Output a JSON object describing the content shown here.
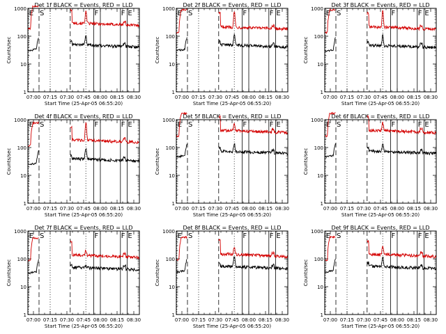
{
  "figure": {
    "axis_color": "#000000",
    "events_color": "#000000",
    "lld_color": "#d40000"
  },
  "chart_data": [
    {
      "type": "line",
      "title": "Det 1f BLACK = Events, RED = LLD",
      "xlabel": "Start Time (25-Apr-05 06:55:20)",
      "ylabel": "Counts/sec",
      "yscale": "log",
      "ylim": [
        1,
        1000
      ],
      "xticks": [
        "07:00",
        "07:15",
        "07:30",
        "07:45",
        "08:00",
        "08:15",
        "08:30"
      ],
      "yticks": [
        "1",
        "10",
        "100",
        "1000"
      ],
      "markers": [
        {
          "label": "E",
          "x": 0.5,
          "style": "dotted"
        },
        {
          "label": "S",
          "x": 10,
          "style": "dashed"
        },
        {
          "label": "",
          "x": 20,
          "style": "dotted"
        },
        {
          "label": "",
          "x": 38,
          "style": "dashed"
        },
        {
          "label": "",
          "x": 52,
          "style": "dotted"
        },
        {
          "label": "F",
          "x": 59,
          "style": "solid"
        },
        {
          "label": "",
          "x": 65,
          "style": "solid"
        },
        {
          "label": "F",
          "x": 83,
          "style": "solid"
        },
        {
          "label": "E",
          "x": 89,
          "style": "solid"
        }
      ],
      "series": [
        {
          "name": "Events",
          "level": 50,
          "spike": 120
        },
        {
          "name": "LLD",
          "level": 300,
          "spike": 900
        }
      ]
    },
    {
      "type": "line",
      "title": "Det 2f BLACK = Events, RED = LLD",
      "xlabel": "Start Time (25-Apr-05 06:55:20)",
      "ylabel": "Counts/sec",
      "yscale": "log",
      "ylim": [
        1,
        1000
      ],
      "xticks": [
        "07:00",
        "07:15",
        "07:30",
        "07:45",
        "08:00",
        "08:15",
        "08:30"
      ],
      "yticks": [
        "1",
        "10",
        "100",
        "1000"
      ],
      "markers": [
        {
          "label": "E",
          "x": 0.5,
          "style": "dotted"
        },
        {
          "label": "S",
          "x": 10,
          "style": "dashed"
        },
        {
          "label": "",
          "x": 20,
          "style": "dotted"
        },
        {
          "label": "",
          "x": 38,
          "style": "dashed"
        },
        {
          "label": "",
          "x": 52,
          "style": "dotted"
        },
        {
          "label": "F",
          "x": 59,
          "style": "solid"
        },
        {
          "label": "",
          "x": 65,
          "style": "solid"
        },
        {
          "label": "F",
          "x": 83,
          "style": "solid"
        },
        {
          "label": "E",
          "x": 89,
          "style": "solid"
        }
      ],
      "series": [
        {
          "name": "Events",
          "level": 50,
          "spike": 130
        },
        {
          "name": "LLD",
          "level": 220,
          "spike": 900
        }
      ]
    },
    {
      "type": "line",
      "title": "Det 3f BLACK = Events, RED = LLD",
      "xlabel": "Start Time (25-Apr-05 06:55:20)",
      "ylabel": "Counts/sec",
      "yscale": "log",
      "ylim": [
        1,
        1000
      ],
      "xticks": [
        "07:00",
        "07:15",
        "07:30",
        "07:45",
        "08:00",
        "08:15",
        "08:30"
      ],
      "yticks": [
        "1",
        "10",
        "100",
        "1000"
      ],
      "markers": [
        {
          "label": "E",
          "x": 0.5,
          "style": "dotted"
        },
        {
          "label": "S",
          "x": 10,
          "style": "dashed"
        },
        {
          "label": "",
          "x": 20,
          "style": "dotted"
        },
        {
          "label": "",
          "x": 38,
          "style": "dashed"
        },
        {
          "label": "",
          "x": 52,
          "style": "dotted"
        },
        {
          "label": "F",
          "x": 59,
          "style": "solid"
        },
        {
          "label": "",
          "x": 65,
          "style": "solid"
        },
        {
          "label": "F",
          "x": 83,
          "style": "solid"
        },
        {
          "label": "E",
          "x": 89,
          "style": "solid"
        }
      ],
      "series": [
        {
          "name": "Events",
          "level": 48,
          "spike": 120
        },
        {
          "name": "LLD",
          "level": 220,
          "spike": 900
        }
      ]
    },
    {
      "type": "line",
      "title": "Det 4f BLACK = Events, RED = LLD",
      "xlabel": "Start Time (25-Apr-05 06:55:20)",
      "ylabel": "Counts/sec",
      "yscale": "log",
      "ylim": [
        1,
        1000
      ],
      "xticks": [
        "07:00",
        "07:15",
        "07:30",
        "07:45",
        "08:00",
        "08:15",
        "08:30"
      ],
      "yticks": [
        "1",
        "10",
        "100",
        "1000"
      ],
      "markers": [
        {
          "label": "E",
          "x": 0.5,
          "style": "dotted"
        },
        {
          "label": "S",
          "x": 10,
          "style": "dashed"
        },
        {
          "label": "",
          "x": 20,
          "style": "dotted"
        },
        {
          "label": "",
          "x": 38,
          "style": "dashed"
        },
        {
          "label": "",
          "x": 52,
          "style": "dotted"
        },
        {
          "label": "F",
          "x": 59,
          "style": "solid"
        },
        {
          "label": "",
          "x": 65,
          "style": "solid"
        },
        {
          "label": "F",
          "x": 83,
          "style": "solid"
        },
        {
          "label": "E",
          "x": 89,
          "style": "solid"
        }
      ],
      "series": [
        {
          "name": "Events",
          "level": 40,
          "spike": 110
        },
        {
          "name": "LLD",
          "level": 190,
          "spike": 900
        }
      ]
    },
    {
      "type": "line",
      "title": "Det 5f BLACK = Events, RED = LLD",
      "xlabel": "Start Time (25-Apr-05 06:55:20)",
      "ylabel": "Counts/sec",
      "yscale": "log",
      "ylim": [
        1,
        1000
      ],
      "xticks": [
        "07:00",
        "07:15",
        "07:30",
        "07:45",
        "08:00",
        "08:15",
        "08:30"
      ],
      "yticks": [
        "1",
        "10",
        "100",
        "1000"
      ],
      "markers": [
        {
          "label": "E",
          "x": 0.5,
          "style": "dotted"
        },
        {
          "label": "S",
          "x": 10,
          "style": "dashed"
        },
        {
          "label": "",
          "x": 20,
          "style": "dotted"
        },
        {
          "label": "",
          "x": 38,
          "style": "dashed"
        },
        {
          "label": "",
          "x": 52,
          "style": "dotted"
        },
        {
          "label": "F",
          "x": 59,
          "style": "solid"
        },
        {
          "label": "",
          "x": 65,
          "style": "solid"
        },
        {
          "label": "F",
          "x": 83,
          "style": "solid"
        },
        {
          "label": "E",
          "x": 89,
          "style": "solid"
        }
      ],
      "series": [
        {
          "name": "Events",
          "level": 75,
          "spike": 160
        },
        {
          "name": "LLD",
          "level": 420,
          "spike": 900
        }
      ]
    },
    {
      "type": "line",
      "title": "Det 6f BLACK = Events, RED = LLD",
      "xlabel": "Start Time (25-Apr-05 06:55:20)",
      "ylabel": "Counts/sec",
      "yscale": "log",
      "ylim": [
        1,
        1000
      ],
      "xticks": [
        "07:00",
        "07:15",
        "07:30",
        "07:45",
        "08:00",
        "08:15",
        "08:30"
      ],
      "yticks": [
        "1",
        "10",
        "100",
        "1000"
      ],
      "markers": [
        {
          "label": "E",
          "x": 0.5,
          "style": "dotted"
        },
        {
          "label": "S",
          "x": 10,
          "style": "dashed"
        },
        {
          "label": "",
          "x": 20,
          "style": "dotted"
        },
        {
          "label": "",
          "x": 38,
          "style": "dashed"
        },
        {
          "label": "",
          "x": 52,
          "style": "dotted"
        },
        {
          "label": "F",
          "x": 59,
          "style": "solid"
        },
        {
          "label": "",
          "x": 65,
          "style": "solid"
        },
        {
          "label": "F",
          "x": 83,
          "style": "solid"
        },
        {
          "label": "E",
          "x": 89,
          "style": "solid"
        }
      ],
      "series": [
        {
          "name": "Events",
          "level": 75,
          "spike": 150
        },
        {
          "name": "LLD",
          "level": 420,
          "spike": 900
        }
      ]
    },
    {
      "type": "line",
      "title": "Det 7f BLACK = Events, RED = LLD",
      "xlabel": "Start Time (25-Apr-05 06:55:20)",
      "ylabel": "Counts/sec",
      "yscale": "log",
      "ylim": [
        1,
        1000
      ],
      "xticks": [
        "07:00",
        "07:15",
        "07:30",
        "07:45",
        "08:00",
        "08:15",
        "08:30"
      ],
      "yticks": [
        "1",
        "10",
        "100",
        "1000"
      ],
      "markers": [
        {
          "label": "E",
          "x": 0.5,
          "style": "dotted"
        },
        {
          "label": "S",
          "x": 10,
          "style": "dashed"
        },
        {
          "label": "",
          "x": 20,
          "style": "dotted"
        },
        {
          "label": "",
          "x": 38,
          "style": "dashed"
        },
        {
          "label": "",
          "x": 52,
          "style": "dotted"
        },
        {
          "label": "F",
          "x": 59,
          "style": "solid"
        },
        {
          "label": "",
          "x": 65,
          "style": "solid"
        },
        {
          "label": "F",
          "x": 83,
          "style": "solid"
        },
        {
          "label": "E",
          "x": 89,
          "style": "solid"
        }
      ],
      "series": [
        {
          "name": "Events",
          "level": 50,
          "spike": 60
        },
        {
          "name": "LLD",
          "level": 140,
          "spike": 220
        }
      ]
    },
    {
      "type": "line",
      "title": "Det 8f BLACK = Events, RED = LLD",
      "xlabel": "Start Time (25-Apr-05 06:55:20)",
      "ylabel": "Counts/sec",
      "yscale": "log",
      "ylim": [
        1,
        1000
      ],
      "xticks": [
        "07:00",
        "07:15",
        "07:30",
        "07:45",
        "08:00",
        "08:15",
        "08:30"
      ],
      "yticks": [
        "1",
        "10",
        "100",
        "1000"
      ],
      "markers": [
        {
          "label": "E",
          "x": 0.5,
          "style": "dotted"
        },
        {
          "label": "S",
          "x": 10,
          "style": "dashed"
        },
        {
          "label": "",
          "x": 20,
          "style": "dotted"
        },
        {
          "label": "",
          "x": 38,
          "style": "dashed"
        },
        {
          "label": "",
          "x": 52,
          "style": "dotted"
        },
        {
          "label": "F",
          "x": 59,
          "style": "solid"
        },
        {
          "label": "",
          "x": 65,
          "style": "solid"
        },
        {
          "label": "F",
          "x": 83,
          "style": "solid"
        },
        {
          "label": "E",
          "x": 89,
          "style": "solid"
        }
      ],
      "series": [
        {
          "name": "Events",
          "level": 55,
          "spike": 140
        },
        {
          "name": "LLD",
          "level": 150,
          "spike": 330
        }
      ]
    },
    {
      "type": "line",
      "title": "Det 9f BLACK = Events, RED = LLD",
      "xlabel": "Start Time (25-Apr-05 06:55:20)",
      "ylabel": "Counts/sec",
      "yscale": "log",
      "ylim": [
        1,
        1000
      ],
      "xticks": [
        "07:00",
        "07:15",
        "07:30",
        "07:45",
        "08:00",
        "08:15",
        "08:30"
      ],
      "yticks": [
        "1",
        "10",
        "100",
        "1000"
      ],
      "markers": [
        {
          "label": "E",
          "x": 0.5,
          "style": "dotted"
        },
        {
          "label": "S",
          "x": 10,
          "style": "dashed"
        },
        {
          "label": "",
          "x": 20,
          "style": "dotted"
        },
        {
          "label": "",
          "x": 38,
          "style": "dashed"
        },
        {
          "label": "",
          "x": 52,
          "style": "dotted"
        },
        {
          "label": "F",
          "x": 59,
          "style": "solid"
        },
        {
          "label": "",
          "x": 65,
          "style": "solid"
        },
        {
          "label": "F",
          "x": 83,
          "style": "solid"
        },
        {
          "label": "E",
          "x": 89,
          "style": "solid"
        }
      ],
      "series": [
        {
          "name": "Events",
          "level": 55,
          "spike": 140
        },
        {
          "name": "LLD",
          "level": 150,
          "spike": 320
        }
      ]
    }
  ]
}
